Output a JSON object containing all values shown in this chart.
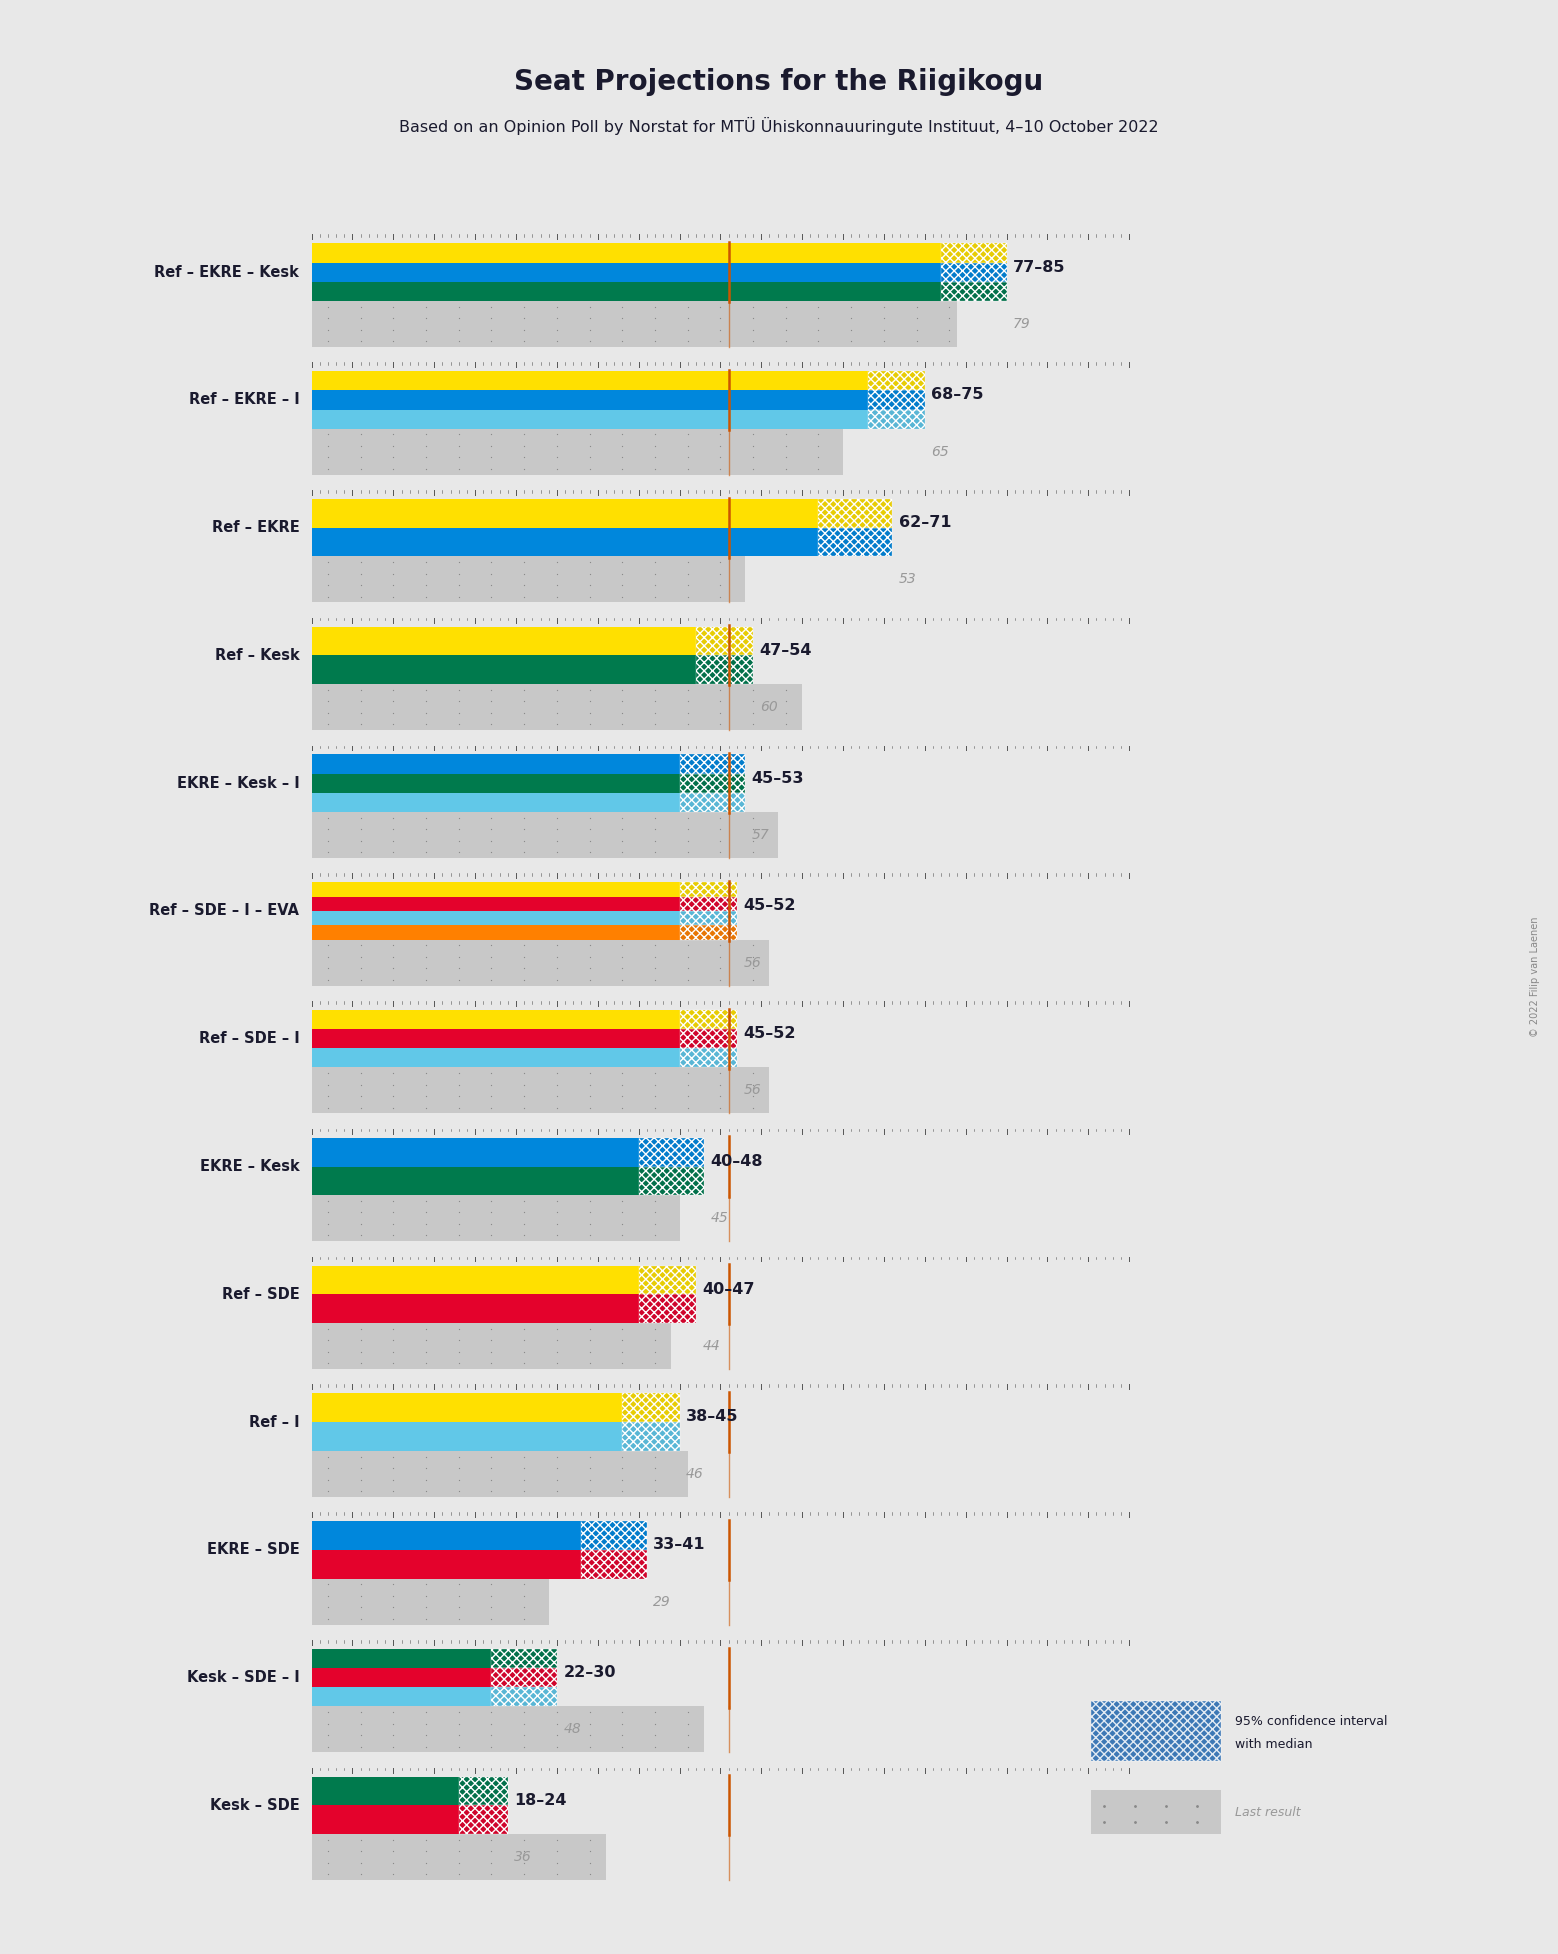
{
  "title": "Seat Projections for the Riigikogu",
  "subtitle": "Based on an Opinion Poll by Norstat for MTÜ Ühiskonnauuringute Instituut, 4–10 October 2022",
  "copyright": "© 2022 Filip van Laenen",
  "majority_line": 51,
  "x_max": 101,
  "coalitions": [
    {
      "label": "Ref – EKRE – Kesk",
      "underline": false,
      "ci_low": 77,
      "ci_high": 85,
      "last_result": 79,
      "parties": [
        "Ref",
        "EKRE",
        "Kesk"
      ]
    },
    {
      "label": "Ref – EKRE – I",
      "underline": false,
      "ci_low": 68,
      "ci_high": 75,
      "last_result": 65,
      "parties": [
        "Ref",
        "EKRE",
        "I"
      ]
    },
    {
      "label": "Ref – EKRE",
      "underline": false,
      "ci_low": 62,
      "ci_high": 71,
      "last_result": 53,
      "parties": [
        "Ref",
        "EKRE"
      ]
    },
    {
      "label": "Ref – Kesk",
      "underline": false,
      "ci_low": 47,
      "ci_high": 54,
      "last_result": 60,
      "parties": [
        "Ref",
        "Kesk"
      ]
    },
    {
      "label": "EKRE – Kesk – I",
      "underline": true,
      "ci_low": 45,
      "ci_high": 53,
      "last_result": 57,
      "parties": [
        "EKRE",
        "Kesk",
        "I"
      ]
    },
    {
      "label": "Ref – SDE – I – EVA",
      "underline": false,
      "ci_low": 45,
      "ci_high": 52,
      "last_result": 56,
      "parties": [
        "Ref",
        "SDE",
        "I",
        "EVA"
      ]
    },
    {
      "label": "Ref – SDE – I",
      "underline": false,
      "ci_low": 45,
      "ci_high": 52,
      "last_result": 56,
      "parties": [
        "Ref",
        "SDE",
        "I"
      ]
    },
    {
      "label": "EKRE – Kesk",
      "underline": false,
      "ci_low": 40,
      "ci_high": 48,
      "last_result": 45,
      "parties": [
        "EKRE",
        "Kesk"
      ]
    },
    {
      "label": "Ref – SDE",
      "underline": false,
      "ci_low": 40,
      "ci_high": 47,
      "last_result": 44,
      "parties": [
        "Ref",
        "SDE"
      ]
    },
    {
      "label": "Ref – I",
      "underline": false,
      "ci_low": 38,
      "ci_high": 45,
      "last_result": 46,
      "parties": [
        "Ref",
        "I"
      ]
    },
    {
      "label": "EKRE – SDE",
      "underline": false,
      "ci_low": 33,
      "ci_high": 41,
      "last_result": 29,
      "parties": [
        "EKRE",
        "SDE"
      ]
    },
    {
      "label": "Kesk – SDE – I",
      "underline": false,
      "ci_low": 22,
      "ci_high": 30,
      "last_result": 48,
      "parties": [
        "Kesk",
        "SDE",
        "I"
      ]
    },
    {
      "label": "Kesk – SDE",
      "underline": false,
      "ci_low": 18,
      "ci_high": 24,
      "last_result": 36,
      "parties": [
        "Kesk",
        "SDE"
      ]
    }
  ],
  "party_colors": {
    "Ref": "#FFE000",
    "EKRE": "#0087DC",
    "Kesk": "#007A4D",
    "SDE": "#E4022C",
    "I": "#61C8E8",
    "EVA": "#FF8000"
  },
  "bg_color": "#E8E8E8",
  "ci_dark_color": "#1A2035",
  "majority_line_color": "#CC5500",
  "last_result_bar_color": "#C8C8C8",
  "last_result_dot_color": "#888888",
  "label_color": "#1A1A2E",
  "last_result_text_color": "#999999"
}
